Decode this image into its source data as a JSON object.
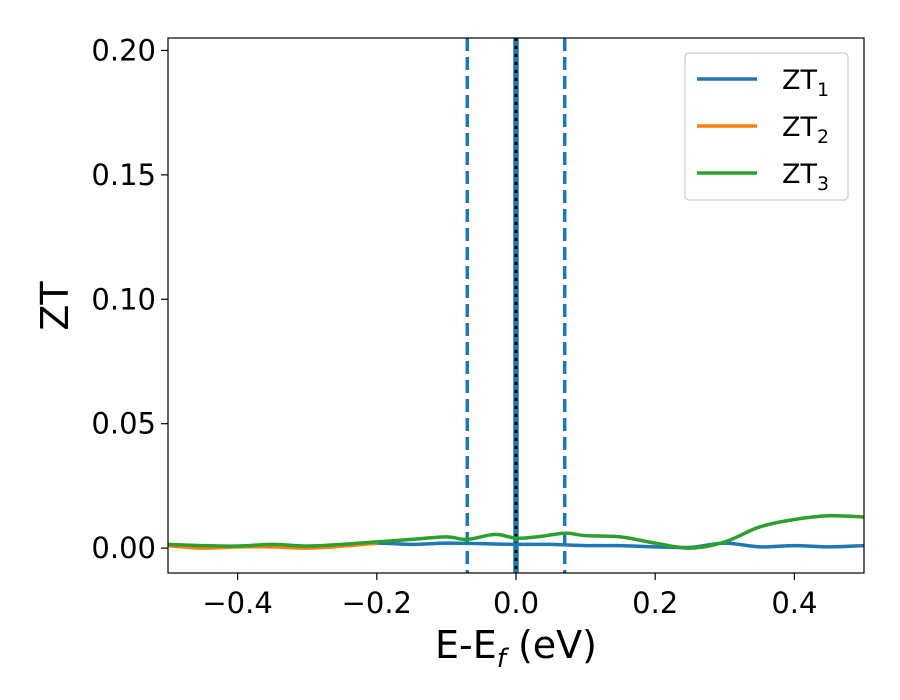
{
  "chart_data": {
    "type": "line",
    "xlabel_main": "E-E",
    "xlabel_sub": "f",
    "xlabel_unit": " (eV)",
    "ylabel": "ZT",
    "xlim": [
      -0.5,
      0.5
    ],
    "ylim": [
      -0.01,
      0.205
    ],
    "xticks": [
      -0.4,
      -0.2,
      0.0,
      0.2,
      0.4
    ],
    "xtick_labels": [
      "−0.4",
      "−0.2",
      "0.0",
      "0.2",
      "0.4"
    ],
    "yticks": [
      0.0,
      0.05,
      0.1,
      0.15,
      0.2
    ],
    "ytick_labels": [
      "0.00",
      "0.05",
      "0.10",
      "0.15",
      "0.20"
    ],
    "grid": false,
    "legend_position": "top-right",
    "vlines": [
      {
        "x": -0.07,
        "style": "dashed",
        "color": "#1f77b4"
      },
      {
        "x": 0.07,
        "style": "dashed",
        "color": "#1f77b4"
      },
      {
        "x": 0.0,
        "style": "solid",
        "color": "#1f77b4"
      },
      {
        "x": 0.0,
        "style": "dotted",
        "color": "#000000"
      }
    ],
    "series": [
      {
        "name": "ZT",
        "sub": "1",
        "color": "#1f77b4",
        "x": [
          -0.5,
          -0.45,
          -0.4,
          -0.35,
          -0.3,
          -0.25,
          -0.2,
          -0.15,
          -0.1,
          -0.05,
          0.0,
          0.05,
          0.1,
          0.15,
          0.2,
          0.25,
          0.3,
          0.35,
          0.4,
          0.45,
          0.5
        ],
        "y": [
          0.001,
          0.0005,
          0.0008,
          0.0012,
          0.0008,
          0.0012,
          0.002,
          0.0015,
          0.002,
          0.0018,
          0.0015,
          0.0015,
          0.001,
          0.001,
          0.0005,
          0.0003,
          0.002,
          0.0005,
          0.001,
          0.0005,
          0.001
        ]
      },
      {
        "name": "ZT",
        "sub": "2",
        "color": "#ff7f0e",
        "x": [
          -0.5,
          -0.45,
          -0.4,
          -0.35,
          -0.3,
          -0.25,
          -0.2
        ],
        "y": [
          0.001,
          0.0,
          0.0005,
          0.0005,
          0.0,
          0.0008,
          0.002
        ]
      },
      {
        "name": "ZT",
        "sub": "3",
        "color": "#2ca02c",
        "x": [
          -0.5,
          -0.45,
          -0.4,
          -0.35,
          -0.3,
          -0.25,
          -0.2,
          -0.15,
          -0.1,
          -0.07,
          -0.03,
          0.0,
          0.03,
          0.07,
          0.1,
          0.15,
          0.2,
          0.25,
          0.3,
          0.35,
          0.4,
          0.45,
          0.5
        ],
        "y": [
          0.0015,
          0.001,
          0.0008,
          0.0015,
          0.0008,
          0.0015,
          0.0025,
          0.0035,
          0.0045,
          0.0035,
          0.0055,
          0.004,
          0.0045,
          0.006,
          0.005,
          0.0045,
          0.002,
          0.0,
          0.0025,
          0.0085,
          0.0115,
          0.013,
          0.0125
        ]
      }
    ]
  }
}
